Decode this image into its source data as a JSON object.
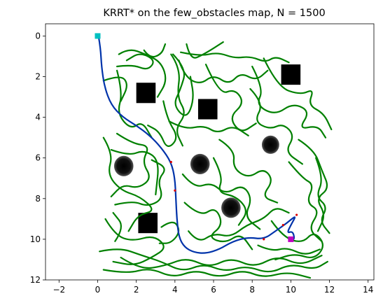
{
  "chart_data": {
    "type": "scatter",
    "title": "KRRT* on the few_obstacles map, N = 1500",
    "xlabel": "",
    "ylabel": "",
    "xlim": [
      -2.7,
      14.3
    ],
    "ylim": [
      12,
      -0.6
    ],
    "y_inverted": true,
    "grid": false,
    "x_ticks": [
      -2,
      0,
      2,
      4,
      6,
      8,
      10,
      12,
      14
    ],
    "y_ticks": [
      0,
      2,
      4,
      6,
      8,
      10,
      12
    ],
    "map_extent": {
      "x": [
        0,
        12
      ],
      "y": [
        0,
        12
      ]
    },
    "obstacles": [
      {
        "shape": "square",
        "center": [
          2.5,
          2.8
        ],
        "size": 1.0
      },
      {
        "shape": "square",
        "center": [
          5.7,
          3.6
        ],
        "size": 1.0
      },
      {
        "shape": "square",
        "center": [
          10.0,
          1.9
        ],
        "size": 1.0
      },
      {
        "shape": "square",
        "center": [
          2.6,
          9.2
        ],
        "size": 1.0
      },
      {
        "shape": "circle",
        "center": [
          1.35,
          6.4
        ],
        "radius": 0.5
      },
      {
        "shape": "circle",
        "center": [
          5.3,
          6.3
        ],
        "radius": 0.5
      },
      {
        "shape": "circle",
        "center": [
          8.95,
          5.35
        ],
        "radius": 0.45
      },
      {
        "shape": "circle",
        "center": [
          6.9,
          8.45
        ],
        "radius": 0.5
      }
    ],
    "start": {
      "x": 0,
      "y": 0,
      "color": "#00c0c0"
    },
    "goal": {
      "x": 10,
      "y": 10,
      "color": "#c000c0"
    },
    "tree_color": "#008000",
    "path_color": "#0033aa",
    "path": [
      [
        0.05,
        0.05
      ],
      [
        0.15,
        0.6
      ],
      [
        0.2,
        1.5
      ],
      [
        0.35,
        2.5
      ],
      [
        0.7,
        3.4
      ],
      [
        1.3,
        4.0
      ],
      [
        2.0,
        4.4
      ],
      [
        2.7,
        4.9
      ],
      [
        3.3,
        5.5
      ],
      [
        3.8,
        6.2
      ],
      [
        4.0,
        7.0
      ],
      [
        4.05,
        8.0
      ],
      [
        4.1,
        9.0
      ],
      [
        4.2,
        9.9
      ],
      [
        4.5,
        10.4
      ],
      [
        5.0,
        10.65
      ],
      [
        5.6,
        10.7
      ],
      [
        6.3,
        10.5
      ],
      [
        7.0,
        10.1
      ],
      [
        7.8,
        9.9
      ],
      [
        8.6,
        10.0
      ],
      [
        9.2,
        9.6
      ],
      [
        9.8,
        9.2
      ],
      [
        10.3,
        8.8
      ],
      [
        10.0,
        9.3
      ],
      [
        9.8,
        9.7
      ],
      [
        10.1,
        9.6
      ],
      [
        10.2,
        10.0
      ],
      [
        10.0,
        10.0
      ]
    ],
    "waypoints": [
      [
        3.8,
        6.2
      ],
      [
        4.0,
        7.6
      ],
      [
        8.6,
        10.0
      ],
      [
        9.6,
        9.3
      ],
      [
        10.3,
        8.8
      ]
    ],
    "waypoint_color": "#dd0000",
    "tree_segments": [
      [
        [
          1.0,
          1.5
        ],
        [
          1.8,
          1.4
        ],
        [
          2.6,
          1.7
        ],
        [
          3.0,
          1.2
        ],
        [
          2.2,
          0.8
        ],
        [
          1.5,
          1.2
        ]
      ],
      [
        [
          1.0,
          1.7
        ],
        [
          1.3,
          2.8
        ],
        [
          1.0,
          3.8
        ],
        [
          1.7,
          4.6
        ],
        [
          2.3,
          4.2
        ],
        [
          2.8,
          5.0
        ]
      ],
      [
        [
          0.3,
          2.2
        ],
        [
          1.2,
          1.9
        ],
        [
          1.6,
          2.4
        ],
        [
          1.2,
          3.2
        ]
      ],
      [
        [
          1.1,
          0.9
        ],
        [
          1.6,
          0.6
        ],
        [
          2.5,
          0.9
        ],
        [
          3.3,
          1.3
        ],
        [
          3.6,
          2.2
        ],
        [
          3.1,
          3.0
        ]
      ],
      [
        [
          3.9,
          0.9
        ],
        [
          4.6,
          1.6
        ],
        [
          4.3,
          2.6
        ],
        [
          3.9,
          3.4
        ],
        [
          4.6,
          4.1
        ],
        [
          5.0,
          3.1
        ],
        [
          4.8,
          2.0
        ]
      ],
      [
        [
          4.3,
          0.8
        ],
        [
          5.3,
          1.0
        ],
        [
          6.2,
          0.8
        ],
        [
          7.1,
          1.1
        ],
        [
          7.9,
          1.0
        ],
        [
          8.7,
          1.3
        ],
        [
          9.2,
          1.0
        ],
        [
          9.9,
          1.3
        ]
      ],
      [
        [
          4.2,
          1.2
        ],
        [
          4.5,
          2.0
        ],
        [
          5.3,
          2.4
        ],
        [
          6.0,
          1.9
        ],
        [
          6.8,
          2.4
        ],
        [
          7.4,
          1.8
        ],
        [
          8.2,
          2.2
        ],
        [
          8.8,
          1.7
        ]
      ],
      [
        [
          5.6,
          1.4
        ],
        [
          6.3,
          2.9
        ],
        [
          7.1,
          2.6
        ],
        [
          7.6,
          3.3
        ],
        [
          6.8,
          4.0
        ],
        [
          7.4,
          4.8
        ],
        [
          8.2,
          4.3
        ]
      ],
      [
        [
          3.7,
          4.2
        ],
        [
          4.5,
          4.6
        ],
        [
          5.5,
          4.4
        ],
        [
          6.2,
          4.8
        ],
        [
          7.0,
          4.4
        ],
        [
          7.8,
          4.9
        ]
      ],
      [
        [
          3.4,
          3.2
        ],
        [
          3.6,
          4.1
        ],
        [
          4.2,
          5.0
        ],
        [
          3.6,
          5.6
        ],
        [
          3.2,
          4.7
        ],
        [
          2.6,
          4.4
        ]
      ],
      [
        [
          3.8,
          0.9
        ],
        [
          4.3,
          1.6
        ],
        [
          4.1,
          3.0
        ],
        [
          4.6,
          3.8
        ],
        [
          4.0,
          4.6
        ],
        [
          4.4,
          5.4
        ]
      ],
      [
        [
          8.0,
          1.5
        ],
        [
          8.6,
          2.6
        ],
        [
          8.2,
          3.4
        ],
        [
          9.2,
          3.9
        ],
        [
          10.1,
          3.3
        ],
        [
          11.0,
          3.7
        ],
        [
          10.4,
          4.6
        ],
        [
          11.4,
          4.4
        ],
        [
          11.8,
          5.0
        ]
      ],
      [
        [
          8.6,
          1.1
        ],
        [
          9.3,
          2.5
        ],
        [
          10.5,
          2.9
        ],
        [
          11.2,
          2.6
        ],
        [
          10.9,
          3.4
        ],
        [
          11.7,
          3.8
        ],
        [
          12.1,
          4.6
        ]
      ],
      [
        [
          7.9,
          2.6
        ],
        [
          8.6,
          3.3
        ],
        [
          8.1,
          4.2
        ],
        [
          8.9,
          4.6
        ],
        [
          9.6,
          4.3
        ],
        [
          10.2,
          4.9
        ],
        [
          9.7,
          5.7
        ],
        [
          10.6,
          6.3
        ]
      ],
      [
        [
          10.4,
          5.1
        ],
        [
          11.2,
          5.6
        ],
        [
          11.6,
          6.6
        ],
        [
          12.0,
          7.5
        ],
        [
          11.3,
          8.0
        ],
        [
          11.8,
          8.8
        ],
        [
          11.4,
          9.6
        ]
      ],
      [
        [
          9.9,
          6.2
        ],
        [
          10.6,
          7.0
        ],
        [
          11.2,
          7.3
        ],
        [
          10.8,
          8.2
        ],
        [
          11.5,
          8.6
        ],
        [
          10.9,
          9.5
        ],
        [
          11.6,
          10.1
        ]
      ],
      [
        [
          1.0,
          4.8
        ],
        [
          1.8,
          5.3
        ],
        [
          2.7,
          5.4
        ],
        [
          2.3,
          6.2
        ],
        [
          2.8,
          7.0
        ],
        [
          2.1,
          7.5
        ],
        [
          1.3,
          7.3
        ],
        [
          0.7,
          7.9
        ]
      ],
      [
        [
          0.3,
          5.0
        ],
        [
          0.8,
          5.8
        ],
        [
          0.5,
          6.8
        ],
        [
          1.2,
          7.6
        ],
        [
          2.2,
          7.9
        ],
        [
          3.0,
          8.6
        ],
        [
          2.1,
          8.8
        ],
        [
          1.6,
          9.6
        ]
      ],
      [
        [
          0.9,
          8.3
        ],
        [
          1.8,
          8.1
        ],
        [
          2.6,
          8.4
        ],
        [
          3.4,
          8.0
        ],
        [
          3.1,
          7.1
        ],
        [
          3.6,
          6.5
        ],
        [
          2.8,
          6.1
        ]
      ],
      [
        [
          0.4,
          9.0
        ],
        [
          0.9,
          9.8
        ],
        [
          1.8,
          10.1
        ],
        [
          2.9,
          9.8
        ],
        [
          3.6,
          10.4
        ],
        [
          2.8,
          10.9
        ],
        [
          1.9,
          11.3
        ],
        [
          0.8,
          11.1
        ]
      ],
      [
        [
          0.1,
          10.6
        ],
        [
          1.1,
          10.4
        ],
        [
          2.3,
          10.8
        ],
        [
          3.3,
          11.1
        ],
        [
          4.4,
          11.6
        ],
        [
          5.5,
          11.2
        ],
        [
          6.6,
          11.6
        ],
        [
          7.7,
          11.3
        ],
        [
          8.9,
          11.7
        ],
        [
          10.0,
          11.2
        ],
        [
          11.2,
          11.5
        ],
        [
          11.9,
          11.1
        ]
      ],
      [
        [
          0.3,
          11.5
        ],
        [
          1.5,
          11.7
        ],
        [
          2.7,
          11.4
        ],
        [
          3.9,
          11.9
        ],
        [
          5.1,
          11.5
        ],
        [
          6.3,
          11.9
        ],
        [
          7.5,
          11.5
        ],
        [
          8.6,
          11.9
        ],
        [
          9.8,
          11.6
        ],
        [
          11.0,
          11.9
        ]
      ],
      [
        [
          1.2,
          10.9
        ],
        [
          2.2,
          11.5
        ],
        [
          3.5,
          11.3
        ],
        [
          4.6,
          10.9
        ],
        [
          5.8,
          11.4
        ],
        [
          6.9,
          10.9
        ],
        [
          8.1,
          11.4
        ],
        [
          9.3,
          10.8
        ],
        [
          10.5,
          11.3
        ],
        [
          11.6,
          10.8
        ]
      ],
      [
        [
          4.4,
          6.8
        ],
        [
          5.0,
          7.5
        ],
        [
          5.9,
          7.2
        ],
        [
          6.6,
          7.8
        ],
        [
          7.5,
          7.3
        ],
        [
          8.0,
          8.0
        ],
        [
          7.6,
          8.9
        ],
        [
          8.4,
          9.5
        ]
      ],
      [
        [
          4.5,
          8.2
        ],
        [
          5.3,
          8.9
        ],
        [
          6.1,
          8.4
        ],
        [
          6.5,
          9.3
        ],
        [
          5.7,
          9.9
        ],
        [
          6.6,
          10.2
        ],
        [
          7.4,
          9.7
        ],
        [
          8.0,
          10.5
        ]
      ],
      [
        [
          4.7,
          9.6
        ],
        [
          5.2,
          10.2
        ],
        [
          6.0,
          9.7
        ],
        [
          6.9,
          9.9
        ],
        [
          7.7,
          9.3
        ],
        [
          8.6,
          9.0
        ],
        [
          9.2,
          8.4
        ],
        [
          9.9,
          8.7
        ]
      ],
      [
        [
          6.3,
          5.1
        ],
        [
          7.1,
          5.6
        ],
        [
          7.0,
          6.5
        ],
        [
          7.8,
          7.0
        ],
        [
          8.6,
          6.5
        ],
        [
          9.1,
          7.1
        ],
        [
          8.5,
          7.9
        ],
        [
          9.3,
          8.2
        ]
      ],
      [
        [
          6.0,
          6.0
        ],
        [
          6.5,
          6.9
        ],
        [
          6.2,
          7.7
        ],
        [
          7.2,
          7.9
        ],
        [
          7.8,
          8.6
        ],
        [
          7.3,
          9.3
        ]
      ],
      [
        [
          9.0,
          9.1
        ],
        [
          9.6,
          9.9
        ],
        [
          10.6,
          10.2
        ],
        [
          11.2,
          9.6
        ],
        [
          11.8,
          10.3
        ],
        [
          11.2,
          11.0
        ],
        [
          10.2,
          10.7
        ],
        [
          9.2,
          11.0
        ]
      ],
      [
        [
          8.3,
          10.3
        ],
        [
          9.0,
          10.6
        ],
        [
          9.8,
          10.4
        ],
        [
          10.7,
          10.8
        ],
        [
          11.5,
          10.5
        ]
      ],
      [
        [
          11.3,
          6.0
        ],
        [
          11.7,
          7.0
        ],
        [
          11.3,
          7.9
        ],
        [
          11.9,
          8.4
        ],
        [
          11.5,
          9.1
        ],
        [
          12.0,
          9.7
        ]
      ],
      [
        [
          0.7,
          5.6
        ],
        [
          1.6,
          5.9
        ],
        [
          2.4,
          5.6
        ],
        [
          3.2,
          6.1
        ],
        [
          3.0,
          7.8
        ]
      ],
      [
        [
          2.4,
          0.7
        ],
        [
          2.7,
          1.1
        ],
        [
          3.3,
          0.9
        ],
        [
          3.5,
          0.4
        ]
      ],
      [
        [
          4.6,
          0.4
        ],
        [
          4.8,
          1.2
        ],
        [
          5.5,
          0.9
        ],
        [
          6.5,
          0.3
        ]
      ],
      [
        [
          0.9,
          10.1
        ],
        [
          1.4,
          9.4
        ],
        [
          0.8,
          8.7
        ]
      ],
      [
        [
          3.3,
          9.4
        ],
        [
          3.9,
          9.0
        ],
        [
          4.3,
          9.6
        ],
        [
          3.8,
          10.2
        ],
        [
          3.2,
          10.2
        ]
      ]
    ]
  }
}
